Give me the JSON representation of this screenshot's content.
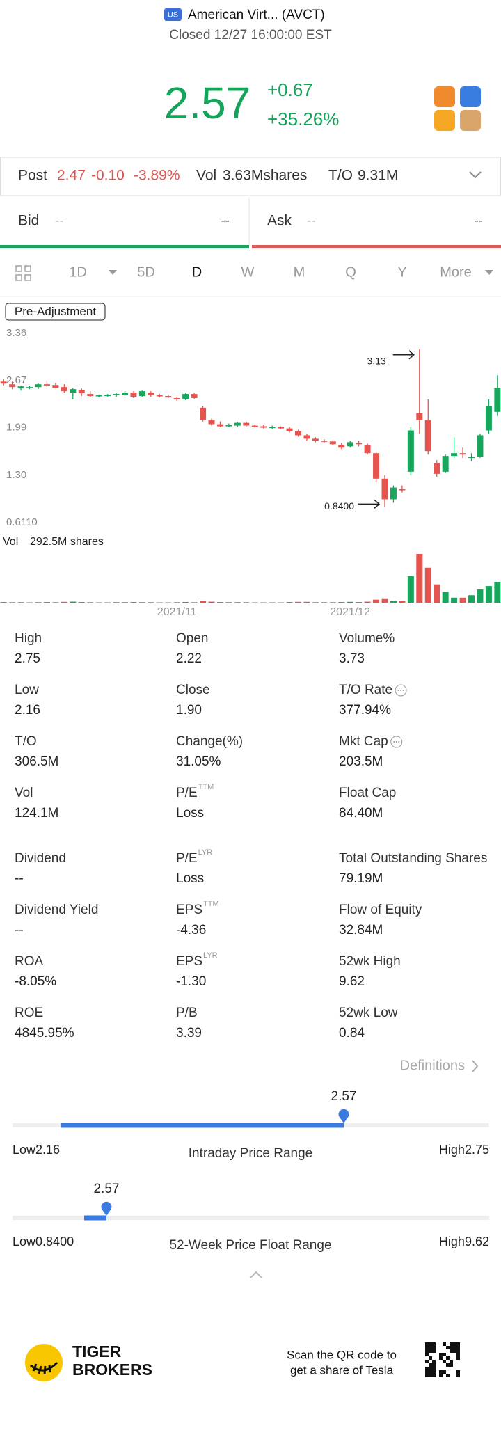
{
  "header": {
    "market": "US",
    "name": "American Virt... (AVCT)",
    "status": "Closed 12/27 16:00:00 EST",
    "price": "2.57",
    "change": "+0.67",
    "change_pct": "+35.26%"
  },
  "post": {
    "label": "Post",
    "price": "2.47",
    "change": "-0.10",
    "change_pct": "-3.89%",
    "vol_label": "Vol",
    "vol": "3.63Mshares",
    "to_label": "T/O",
    "to": "9.31M"
  },
  "quote": {
    "bid_label": "Bid",
    "bid_price": "--",
    "bid_size": "--",
    "ask_label": "Ask",
    "ask_price": "--",
    "ask_size": "--"
  },
  "tabs": {
    "items": [
      "1D",
      "5D",
      "D",
      "W",
      "M",
      "Q",
      "Y",
      "More"
    ],
    "selected": 2
  },
  "chart_data": {
    "type": "candlestick",
    "badge": "Pre-Adjustment",
    "up_color": "#17a65b",
    "down_color": "#e5544f",
    "grid": false,
    "categories": [
      null,
      null,
      null,
      null,
      null,
      null,
      null,
      null,
      null,
      null,
      null,
      null,
      null,
      null,
      null,
      null,
      null,
      null,
      null,
      null,
      "2021/11",
      null,
      null,
      null,
      null,
      null,
      null,
      null,
      null,
      null,
      null,
      null,
      null,
      null,
      null,
      null,
      null,
      null,
      null,
      null,
      "2021/12",
      null,
      null,
      null,
      null,
      null,
      null,
      null,
      null,
      null,
      null,
      null,
      null,
      null,
      null,
      null,
      null,
      null
    ],
    "open": [
      2.66,
      2.62,
      2.56,
      2.57,
      2.58,
      2.62,
      2.61,
      2.58,
      2.5,
      2.54,
      2.48,
      2.45,
      2.45,
      2.46,
      2.47,
      2.5,
      2.45,
      2.5,
      2.46,
      2.45,
      2.42,
      2.41,
      2.48,
      2.28,
      2.1,
      2.04,
      2.01,
      2.02,
      2.06,
      2.02,
      2.01,
      1.99,
      2.0,
      1.98,
      1.94,
      1.88,
      1.83,
      1.8,
      1.79,
      1.74,
      1.72,
      1.77,
      1.74,
      1.62,
      1.25,
      0.95,
      1.1,
      1.35,
      2.2,
      2.1,
      1.48,
      1.35,
      1.58,
      1.62,
      1.55,
      1.57,
      1.95,
      2.22
    ],
    "high": [
      2.7,
      2.66,
      2.6,
      2.6,
      2.63,
      2.68,
      2.64,
      2.62,
      2.57,
      2.56,
      2.52,
      2.47,
      2.48,
      2.5,
      2.52,
      2.52,
      2.53,
      2.52,
      2.48,
      2.47,
      2.44,
      2.49,
      2.49,
      2.3,
      2.12,
      2.08,
      2.05,
      2.07,
      2.08,
      2.04,
      2.03,
      2.02,
      2.01,
      2.0,
      1.96,
      1.9,
      1.85,
      1.82,
      1.81,
      1.77,
      1.8,
      1.8,
      1.76,
      1.64,
      1.3,
      1.15,
      1.15,
      2.0,
      3.13,
      2.4,
      1.52,
      1.6,
      1.85,
      1.7,
      1.62,
      1.9,
      2.4,
      2.75
    ],
    "low": [
      2.6,
      2.55,
      2.53,
      2.55,
      2.55,
      2.58,
      2.56,
      2.5,
      2.4,
      2.45,
      2.44,
      2.43,
      2.44,
      2.44,
      2.45,
      2.42,
      2.44,
      2.44,
      2.43,
      2.42,
      2.38,
      2.39,
      2.4,
      2.08,
      2.02,
      2.0,
      2.0,
      2.0,
      2.0,
      1.99,
      1.98,
      1.97,
      1.97,
      1.92,
      1.86,
      1.8,
      1.78,
      1.77,
      1.74,
      1.68,
      1.7,
      1.72,
      1.6,
      1.2,
      0.84,
      0.9,
      1.05,
      1.3,
      1.9,
      1.6,
      1.28,
      1.33,
      1.55,
      1.55,
      1.5,
      1.55,
      1.9,
      2.16
    ],
    "close": [
      2.63,
      2.58,
      2.59,
      2.58,
      2.62,
      2.6,
      2.57,
      2.52,
      2.55,
      2.49,
      2.45,
      2.46,
      2.47,
      2.48,
      2.5,
      2.44,
      2.52,
      2.46,
      2.45,
      2.43,
      2.4,
      2.48,
      2.42,
      2.1,
      2.04,
      2.01,
      2.03,
      2.06,
      2.02,
      2.01,
      1.99,
      2.0,
      1.98,
      1.94,
      1.88,
      1.83,
      1.8,
      1.79,
      1.75,
      1.7,
      1.78,
      1.75,
      1.62,
      1.25,
      0.95,
      1.12,
      1.08,
      1.95,
      2.1,
      1.65,
      1.32,
      1.58,
      1.62,
      1.6,
      1.57,
      1.88,
      2.3,
      2.57
    ],
    "volume": [
      4,
      3,
      3,
      2,
      3,
      4,
      3,
      5,
      6,
      4,
      3,
      2,
      2,
      3,
      3,
      4,
      3,
      3,
      2,
      2,
      3,
      4,
      3,
      12,
      6,
      4,
      3,
      3,
      3,
      2,
      2,
      2,
      2,
      4,
      5,
      5,
      3,
      3,
      3,
      4,
      5,
      4,
      6,
      18,
      22,
      12,
      9,
      160,
      292.5,
      210,
      110,
      65,
      30,
      30,
      45,
      80,
      100,
      124.1
    ],
    "ylim": [
      0.611,
      3.36
    ],
    "yticks": [
      3.36,
      2.67,
      1.99,
      {
        "value": 1.3,
        "label": "1.30"
      },
      {
        "value": 0.611,
        "label": "0.6110"
      }
    ],
    "annotations": [
      {
        "label": "3.13"
      },
      {
        "label": "0.8400"
      }
    ],
    "volume_title": "Vol",
    "volume_max_label": "292.5M shares",
    "volume_ylim": [
      0,
      292.5
    ]
  },
  "stats": [
    {
      "label": "High",
      "value": "2.75"
    },
    {
      "label": "Open",
      "value": "2.22"
    },
    {
      "label": "Volume%",
      "value": "3.73"
    },
    {
      "label": "Low",
      "value": "2.16"
    },
    {
      "label": "Close",
      "value": "1.90"
    },
    {
      "label": "T/O Rate",
      "value": "377.94%",
      "info": true
    },
    {
      "label": "T/O",
      "value": "306.5M"
    },
    {
      "label": "Change(%)",
      "value": "31.05%"
    },
    {
      "label": "Mkt Cap",
      "value": "203.5M",
      "info": true
    },
    {
      "label": "Vol",
      "value": "124.1M"
    },
    {
      "label": "P/E",
      "sup": "TTM",
      "value": "Loss"
    },
    {
      "label": "Float Cap",
      "value": "84.40M"
    },
    {
      "label": "Dividend",
      "value": "--"
    },
    {
      "label": "P/E",
      "sup": "LYR",
      "value": "Loss"
    },
    {
      "label": "Total Outstanding Shares",
      "value": "79.19M"
    },
    {
      "label": "Dividend Yield",
      "value": "--"
    },
    {
      "label": "EPS",
      "sup": "TTM",
      "value": "-4.36"
    },
    {
      "label": "Flow of Equity",
      "value": "32.84M"
    },
    {
      "label": "ROA",
      "value": "-8.05%"
    },
    {
      "label": "EPS",
      "sup": "LYR",
      "value": "-1.30"
    },
    {
      "label": "52wk High",
      "value": "9.62"
    },
    {
      "label": "ROE",
      "value": "4845.95%"
    },
    {
      "label": "P/B",
      "value": "3.39"
    },
    {
      "label": "52wk Low",
      "value": "0.84"
    }
  ],
  "definitions": "Definitions",
  "ranges": [
    {
      "title": "Intraday Price Range",
      "low_label": "Low",
      "low": 2.16,
      "high_label": "High",
      "high": 2.75,
      "current": 2.57,
      "from": 2.22
    },
    {
      "title": "52-Week Price Float Range",
      "low_label": "Low",
      "low": {
        "value": 0.84,
        "label": "0.8400"
      },
      "high_label": "High",
      "high": 9.62,
      "current": 2.57,
      "from": 2.16
    }
  ],
  "footer": {
    "brand_line1": "TIGER",
    "brand_line2": "BROKERS",
    "qr_line1": "Scan the QR code to",
    "qr_line2": "get a share of Tesla"
  }
}
